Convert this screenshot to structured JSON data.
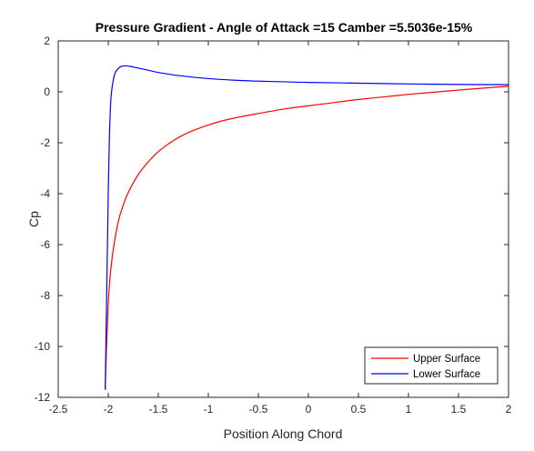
{
  "chart_data": {
    "type": "line",
    "title": "Pressure Gradient - Angle of Attack =15 Camber =5.5036e-15%",
    "xlabel": "Position Along Chord",
    "ylabel": "Cp",
    "xlim": [
      -2.5,
      2
    ],
    "ylim": [
      -12,
      2
    ],
    "xticks": [
      "-2.5",
      "-2",
      "-1.5",
      "-1",
      "-0.5",
      "0",
      "0.5",
      "1",
      "1.5",
      "2"
    ],
    "xtick_values": [
      -2.5,
      -2,
      -1.5,
      -1,
      -0.5,
      0,
      0.5,
      1,
      1.5,
      2
    ],
    "yticks": [
      "2",
      "0",
      "-2",
      "-4",
      "-6",
      "-8",
      "-10",
      "-12"
    ],
    "ytick_values": [
      2,
      0,
      -2,
      -4,
      -6,
      -8,
      -10,
      -12
    ],
    "grid": false,
    "legend_position": "bottom-right",
    "series": [
      {
        "name": "Upper Surface",
        "color": "#ff0000",
        "x": [
          -2.03,
          -2.02,
          -2.01,
          -2.0,
          -1.98,
          -1.95,
          -1.9,
          -1.85,
          -1.8,
          -1.7,
          -1.6,
          -1.5,
          -1.4,
          -1.3,
          -1.2,
          -1.0,
          -0.8,
          -0.5,
          -0.2,
          0.0,
          0.3,
          0.5,
          0.8,
          1.0,
          1.3,
          1.5,
          1.8,
          2.0
        ],
        "y": [
          -11.7,
          -10.3,
          -9.3,
          -8.3,
          -7.2,
          -6.2,
          -5.1,
          -4.45,
          -3.95,
          -3.25,
          -2.75,
          -2.35,
          -2.05,
          -1.8,
          -1.6,
          -1.3,
          -1.08,
          -0.85,
          -0.65,
          -0.55,
          -0.4,
          -0.3,
          -0.18,
          -0.1,
          0.0,
          0.07,
          0.16,
          0.22
        ]
      },
      {
        "name": "Lower Surface",
        "color": "#0000ff",
        "x": [
          -2.03,
          -2.02,
          -2.01,
          -2.0,
          -1.99,
          -1.98,
          -1.97,
          -1.95,
          -1.93,
          -1.9,
          -1.87,
          -1.83,
          -1.78,
          -1.7,
          -1.6,
          -1.5,
          -1.3,
          -1.0,
          -0.7,
          -0.5,
          -0.2,
          0.0,
          0.5,
          1.0,
          1.5,
          2.0
        ],
        "y": [
          -11.7,
          -9.0,
          -6.5,
          -4.0,
          -2.0,
          -0.8,
          -0.1,
          0.45,
          0.75,
          0.92,
          1.0,
          1.02,
          1.0,
          0.93,
          0.85,
          0.76,
          0.64,
          0.52,
          0.45,
          0.42,
          0.39,
          0.37,
          0.34,
          0.31,
          0.29,
          0.28
        ]
      }
    ]
  }
}
